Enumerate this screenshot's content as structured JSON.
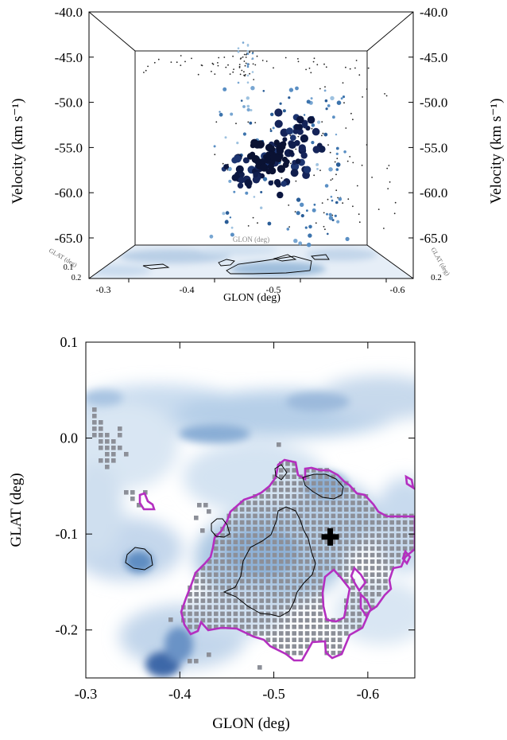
{
  "chart_data": [
    {
      "type": "scatter",
      "panel": "top-3d",
      "ylabel_left": "Velocity (km s⁻¹)",
      "ylabel_right": "Velocity (km s⁻¹)",
      "velocity_ticks": [
        "-40.0",
        "-45.0",
        "-50.0",
        "-55.0",
        "-60.0",
        "-65.0"
      ],
      "vlim": [
        -65,
        -40
      ],
      "glon_label": "GLON (deg)",
      "glon_ticks": [
        "-0.3",
        "-0.4",
        "-0.5",
        "-0.6"
      ],
      "glat_label": "GLAT (deg)",
      "glat_ticks_left": [
        "0.1",
        "0.2"
      ],
      "glat_ticks_right": [
        "0.2"
      ],
      "back_glon_label": "GLON (deg)",
      "back_glat_label": "GLAT (deg)",
      "grid": false,
      "description_points": [
        {
          "glon": -0.52,
          "v": -55.2
        },
        {
          "glon": -0.53,
          "v": -56.3
        },
        {
          "glon": -0.5,
          "v": -56.8
        },
        {
          "glon": -0.55,
          "v": -54.2
        },
        {
          "glon": -0.56,
          "v": -53.2
        },
        {
          "glon": -0.58,
          "v": -52.4
        },
        {
          "glon": -0.48,
          "v": -57.6
        },
        {
          "glon": -0.47,
          "v": -58.4
        },
        {
          "glon": -0.51,
          "v": -59.4
        },
        {
          "glon": -0.45,
          "v": -55.9
        },
        {
          "glon": -0.44,
          "v": -59.2
        },
        {
          "glon": -0.54,
          "v": -51.9
        },
        {
          "glon": -0.57,
          "v": -57.4
        },
        {
          "glon": -0.59,
          "v": -55.4
        },
        {
          "glon": -0.42,
          "v": -57.2
        }
      ]
    },
    {
      "type": "heatmap",
      "panel": "bottom-map",
      "xlabel": "GLON (deg)",
      "ylabel": "GLAT (deg)",
      "xlim": [
        -0.3,
        -0.65
      ],
      "ylim": [
        -0.25,
        0.1
      ],
      "xticks": [
        "-0.3",
        "-0.4",
        "-0.5",
        "-0.6"
      ],
      "yticks": [
        "0.1",
        "0.0",
        "-0.1",
        "-0.2"
      ],
      "xtick_values": [
        -0.3,
        -0.4,
        -0.5,
        -0.6
      ],
      "ytick_values": [
        0.1,
        0.0,
        -0.1,
        -0.2
      ],
      "marker": {
        "glon": -0.56,
        "glat": -0.103,
        "symbol": "plus"
      },
      "colors": {
        "map": "#3f78b4",
        "mask": "#8c8f98",
        "contour": "#000000",
        "outline": "#b42fc0"
      },
      "grid": false
    }
  ]
}
